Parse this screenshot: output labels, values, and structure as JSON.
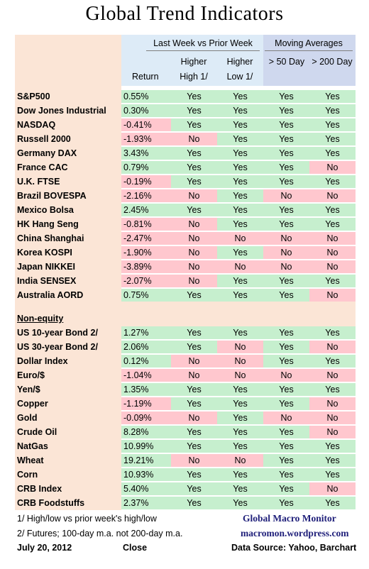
{
  "title": "Global Trend Indicators",
  "headers": {
    "group_last_week": "Last Week vs Prior Week",
    "group_ma": "Moving Averages",
    "return": "Return",
    "higher_high_1": "Higher",
    "higher_high_2": "High 1/",
    "higher_low_1": "Higher",
    "higher_low_2": "Low 1/",
    "ma50": "> 50 Day",
    "ma200": "> 200 Day"
  },
  "section_non_equity": "Non-equity",
  "colors": {
    "label_bg": "#fbe5d6",
    "header_bg": "#ddebf7",
    "green": "#c6efce",
    "red": "#ffc7ce"
  },
  "chart_data": {
    "type": "table",
    "title": "Global Trend Indicators",
    "columns": [
      "Return",
      "Higher High 1/",
      "Higher Low 1/",
      "> 50 Day",
      "> 200 Day"
    ],
    "equities": [
      {
        "name": "S&P500",
        "ret": "0.55%",
        "hh": "Yes",
        "hl": "Yes",
        "ma50": "Yes",
        "ma200": "Yes"
      },
      {
        "name": "Dow Jones Industrial",
        "ret": "0.30%",
        "hh": "Yes",
        "hl": "Yes",
        "ma50": "Yes",
        "ma200": "Yes"
      },
      {
        "name": "NASDAQ",
        "ret": "-0.41%",
        "hh": "Yes",
        "hl": "Yes",
        "ma50": "Yes",
        "ma200": "Yes"
      },
      {
        "name": "Russell 2000",
        "ret": "-1.93%",
        "hh": "No",
        "hl": "Yes",
        "ma50": "Yes",
        "ma200": "Yes"
      },
      {
        "name": "Germany DAX",
        "ret": "3.43%",
        "hh": "Yes",
        "hl": "Yes",
        "ma50": "Yes",
        "ma200": "Yes"
      },
      {
        "name": "France CAC",
        "ret": "0.79%",
        "hh": "Yes",
        "hl": "Yes",
        "ma50": "Yes",
        "ma200": "No"
      },
      {
        "name": "U.K. FTSE",
        "ret": "-0.19%",
        "hh": "Yes",
        "hl": "Yes",
        "ma50": "Yes",
        "ma200": "Yes"
      },
      {
        "name": "Brazil BOVESPA",
        "ret": "-2.16%",
        "hh": "No",
        "hl": "Yes",
        "ma50": "No",
        "ma200": "No"
      },
      {
        "name": "Mexico Bolsa",
        "ret": "2.45%",
        "hh": "Yes",
        "hl": "Yes",
        "ma50": "Yes",
        "ma200": "Yes"
      },
      {
        "name": "HK  Hang Seng",
        "ret": "-0.81%",
        "hh": "No",
        "hl": "Yes",
        "ma50": "Yes",
        "ma200": "Yes"
      },
      {
        "name": "China Shanghai",
        "ret": "-2.47%",
        "hh": "No",
        "hl": "No",
        "ma50": "No",
        "ma200": "No"
      },
      {
        "name": "Korea KOSPI",
        "ret": "-1.90%",
        "hh": "No",
        "hl": "Yes",
        "ma50": "No",
        "ma200": "No"
      },
      {
        "name": "Japan NIKKEI",
        "ret": "-3.89%",
        "hh": "No",
        "hl": "No",
        "ma50": "No",
        "ma200": "No"
      },
      {
        "name": "India SENSEX",
        "ret": "-2.07%",
        "hh": "No",
        "hl": "Yes",
        "ma50": "Yes",
        "ma200": "Yes"
      },
      {
        "name": "Australia AORD",
        "ret": "0.75%",
        "hh": "Yes",
        "hl": "Yes",
        "ma50": "Yes",
        "ma200": "No"
      }
    ],
    "non_equity": [
      {
        "name": "US 10-year Bond 2/",
        "ret": "1.27%",
        "hh": "Yes",
        "hl": "Yes",
        "ma50": "Yes",
        "ma200": "Yes"
      },
      {
        "name": "US 30-year Bond 2/",
        "ret": "2.06%",
        "hh": "Yes",
        "hl": "No",
        "ma50": "Yes",
        "ma200": "No"
      },
      {
        "name": "Dollar Index",
        "ret": "0.12%",
        "hh": "No",
        "hl": "No",
        "ma50": "Yes",
        "ma200": "Yes"
      },
      {
        "name": "Euro/$",
        "ret": "-1.04%",
        "hh": "No",
        "hl": "No",
        "ma50": "No",
        "ma200": "No"
      },
      {
        "name": "Yen/$",
        "ret": "1.35%",
        "hh": "Yes",
        "hl": "Yes",
        "ma50": "Yes",
        "ma200": "Yes"
      },
      {
        "name": "Copper",
        "ret": "-1.19%",
        "hh": "Yes",
        "hl": "Yes",
        "ma50": "Yes",
        "ma200": "No"
      },
      {
        "name": "Gold",
        "ret": "-0.09%",
        "hh": "No",
        "hl": "Yes",
        "ma50": "No",
        "ma200": "No"
      },
      {
        "name": "Crude Oil",
        "ret": "8.28%",
        "hh": "Yes",
        "hl": "Yes",
        "ma50": "Yes",
        "ma200": "No"
      },
      {
        "name": "NatGas",
        "ret": "10.99%",
        "hh": "Yes",
        "hl": "Yes",
        "ma50": "Yes",
        "ma200": "Yes"
      },
      {
        "name": "Wheat",
        "ret": "19.21%",
        "hh": "No",
        "hl": "No",
        "ma50": "Yes",
        "ma200": "Yes"
      },
      {
        "name": "Corn",
        "ret": "10.93%",
        "hh": "Yes",
        "hl": "Yes",
        "ma50": "Yes",
        "ma200": "Yes"
      },
      {
        "name": "CRB Index",
        "ret": "5.40%",
        "hh": "Yes",
        "hl": "Yes",
        "ma50": "Yes",
        "ma200": "No"
      },
      {
        "name": "CRB Foodstuffs",
        "ret": "2.37%",
        "hh": "Yes",
        "hl": "Yes",
        "ma50": "Yes",
        "ma200": "Yes"
      }
    ]
  },
  "footer": {
    "note1": "1/  High/low vs prior week's high/low",
    "note2": "2/  Futures; 100-day m.a. not 200-day m.a.",
    "brand": "Global Macro Monitor",
    "url": "macromon.wordpress.com",
    "date": "July 20, 2012",
    "close": "Close",
    "source": "Data Source: Yahoo, Barchart"
  }
}
